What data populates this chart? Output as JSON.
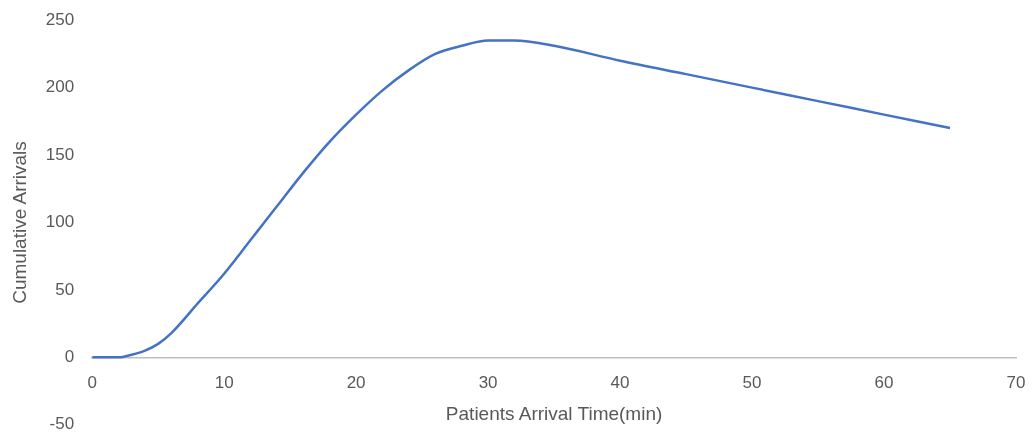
{
  "chart_data": {
    "type": "line",
    "xlabel": "Patients Arrival Time(min)",
    "ylabel": "Cumulative Arrivals",
    "x": [
      0,
      2,
      3,
      4,
      5,
      6,
      8,
      10,
      12,
      14,
      16,
      18,
      20,
      22,
      24,
      26,
      28,
      30,
      32,
      35,
      40,
      45,
      50,
      55,
      60,
      65
    ],
    "series": [
      {
        "color": "#4472c4",
        "values": [
          0,
          0,
          2,
          5,
          10,
          18,
          40,
          62,
          87,
          112,
          137,
          160,
          180,
          198,
          213,
          225,
          231,
          235,
          235,
          231,
          220,
          210,
          200,
          190,
          180,
          170
        ]
      }
    ],
    "xlim": [
      0,
      70
    ],
    "xticks": [
      0,
      10,
      20,
      30,
      40,
      50,
      60,
      70
    ],
    "ylim": [
      -50,
      250
    ],
    "yticks": [
      -50,
      0,
      50,
      100,
      150,
      200,
      250
    ],
    "grid": false,
    "legend": false,
    "marker": "none",
    "line_style": "solid"
  }
}
